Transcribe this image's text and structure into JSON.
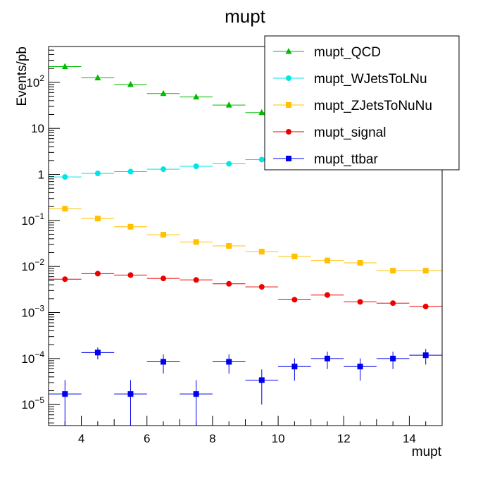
{
  "chart_data": {
    "type": "scatter",
    "title": "mupt",
    "xlabel": "mupt",
    "ylabel": "Events/pb",
    "xlim": [
      3,
      15
    ],
    "ylim": [
      3.5e-06,
      600
    ],
    "yscale": "log",
    "x_ticks": [
      4,
      6,
      8,
      10,
      12,
      14
    ],
    "y_ticks": [
      {
        "value": 1e-05,
        "base": "10",
        "exp": "−5"
      },
      {
        "value": 0.0001,
        "base": "10",
        "exp": "−4"
      },
      {
        "value": 0.001,
        "base": "10",
        "exp": "−3"
      },
      {
        "value": 0.01,
        "base": "10",
        "exp": "−2"
      },
      {
        "value": 0.1,
        "base": "10",
        "exp": "−1"
      },
      {
        "value": 1,
        "base": "1",
        "exp": ""
      },
      {
        "value": 10,
        "base": "10",
        "exp": ""
      },
      {
        "value": 100,
        "base": "10",
        "exp": "2"
      }
    ],
    "bin_half_width": 0.5,
    "legend_position": "top-right",
    "grid": false,
    "series": [
      {
        "name": "mupt_QCD",
        "color": "#00bb00",
        "marker": "triangle",
        "x": [
          3.5,
          4.5,
          5.5,
          6.5,
          7.5,
          8.5,
          9.5
        ],
        "y": [
          220,
          125,
          90,
          57,
          48,
          32,
          22
        ],
        "err": []
      },
      {
        "name": "mupt_WJetsToLNu",
        "color": "#00e5e5",
        "marker": "circle",
        "x": [
          3.5,
          4.5,
          5.5,
          6.5,
          7.5,
          8.5,
          9.5
        ],
        "y": [
          0.88,
          1.05,
          1.15,
          1.3,
          1.5,
          1.7,
          2.1
        ],
        "err": []
      },
      {
        "name": "mupt_ZJetsToNuNu",
        "color": "#ffc000",
        "marker": "square",
        "x": [
          3.5,
          4.5,
          5.5,
          6.5,
          7.5,
          8.5,
          9.5,
          10.5,
          11.5,
          12.5,
          13.5,
          14.5
        ],
        "y": [
          0.18,
          0.11,
          0.073,
          0.049,
          0.034,
          0.028,
          0.021,
          0.0165,
          0.0135,
          0.012,
          0.0081,
          0.0081
        ],
        "err": []
      },
      {
        "name": "mupt_signal",
        "color": "#ee0000",
        "marker": "circle",
        "x": [
          3.5,
          4.5,
          5.5,
          6.5,
          7.5,
          8.5,
          9.5,
          10.5,
          11.5,
          12.5,
          13.5,
          14.5
        ],
        "y": [
          0.0053,
          0.007,
          0.0065,
          0.0055,
          0.0051,
          0.0042,
          0.0036,
          0.0019,
          0.0024,
          0.0017,
          0.0016,
          0.00135
        ],
        "err": []
      },
      {
        "name": "mupt_ttbar",
        "color": "#0000ee",
        "marker": "square",
        "x": [
          3.5,
          4.5,
          5.5,
          6.5,
          7.5,
          8.5,
          9.5,
          10.5,
          11.5,
          12.5,
          13.5,
          14.5
        ],
        "y": [
          1.7e-05,
          0.000135,
          1.7e-05,
          8.5e-05,
          1.7e-05,
          8.5e-05,
          3.4e-05,
          6.7e-05,
          0.0001,
          6.7e-05,
          0.0001,
          0.000118
        ],
        "err": [
          1.7e-05,
          3.9e-05,
          1.7e-05,
          3.8e-05,
          1.7e-05,
          3.8e-05,
          2.4e-05,
          3.4e-05,
          4.1e-05,
          3.4e-05,
          4.1e-05,
          4.4e-05
        ]
      }
    ]
  }
}
